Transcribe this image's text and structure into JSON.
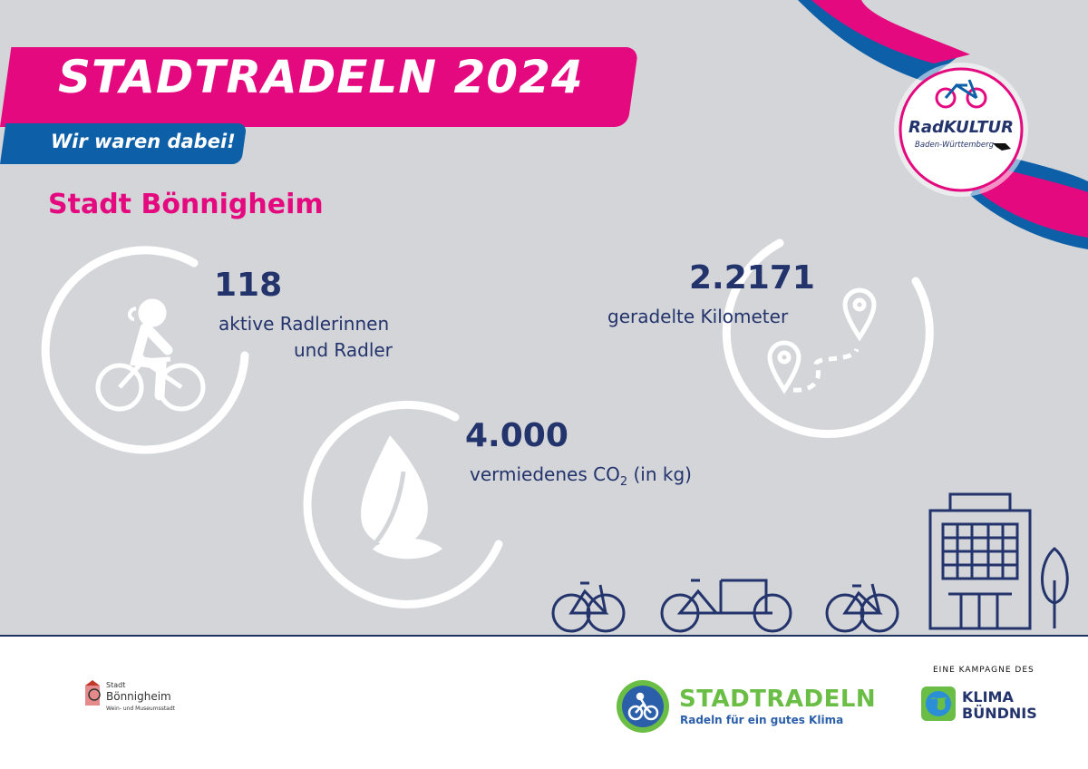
{
  "header": {
    "title": "STADTRADELN 2024",
    "subtitle": "Wir waren dabei!",
    "city": "Stadt Bönnigheim"
  },
  "stats": {
    "riders": {
      "value": "118",
      "label_line1": "aktive Radlerinnen",
      "label_line2": "und Radler",
      "icon": "cyclist-icon"
    },
    "co2": {
      "value": "4.000",
      "label_prefix": "vermiedenes CO",
      "label_sub": "2",
      "label_suffix": " (in kg)",
      "icon": "leaf-icon"
    },
    "km": {
      "value": "2.2171",
      "label": "geradelte Kilometer",
      "icon": "route-map-icon"
    }
  },
  "badge": {
    "name": "RadKULTUR",
    "region": "Baden-Württemberg"
  },
  "footer": {
    "city_logo": {
      "small": "Stadt",
      "name": "Bönnigheim",
      "tagline": "Wein- und Museumsstadt"
    },
    "stadtradeln_logo": {
      "name": "STADTRADELN",
      "slogan": "Radeln für ein gutes Klima"
    },
    "klima_logo": {
      "top": "EINE KAMPAGNE DES",
      "line1": "KLIMA",
      "line2": "BÜNDNIS"
    }
  },
  "colors": {
    "pink": "#e5097f",
    "blue": "#0d5fa8",
    "navy": "#23336b",
    "background": "#d3d5d8",
    "green": "#6abe45"
  }
}
